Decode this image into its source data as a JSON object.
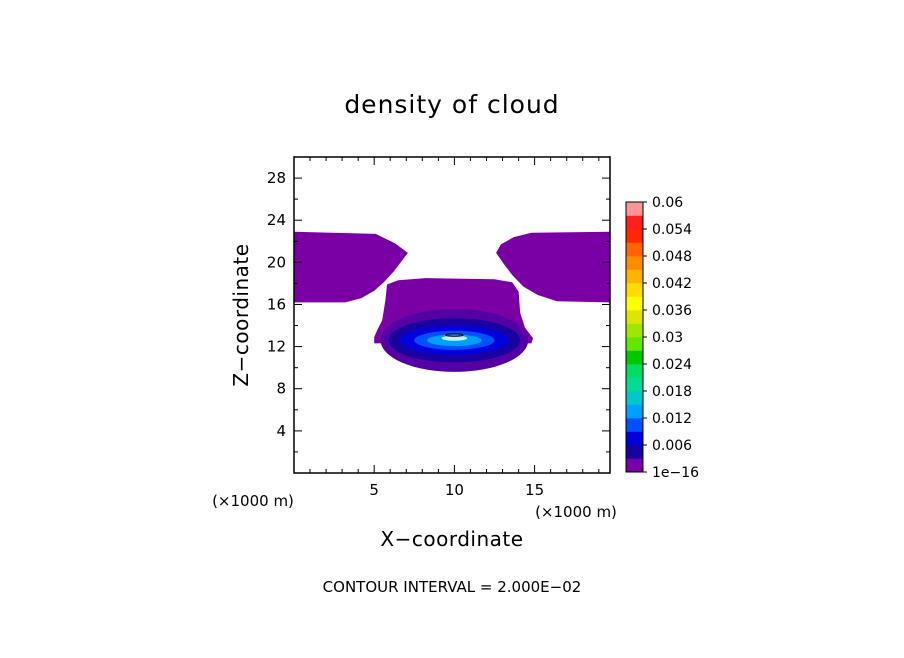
{
  "chart_data": {
    "type": "heatmap",
    "title": "density of cloud",
    "xlabel": "X−coordinate",
    "ylabel": "Z−coordinate",
    "x_unit_left": "(×1000 m)",
    "x_unit_right": "(×1000 m)",
    "xlim": [
      0,
      19.7
    ],
    "ylim": [
      0,
      30
    ],
    "x_ticks": [
      5,
      10,
      15
    ],
    "y_ticks": [
      4,
      8,
      12,
      16,
      20,
      24,
      28
    ],
    "x_minor_step": 1,
    "y_minor_step": 2,
    "footer": "CONTOUR INTERVAL = 2.000E−02",
    "colorbar": {
      "labels": [
        "0.06",
        "0.054",
        "0.048",
        "0.042",
        "0.036",
        "0.03",
        "0.024",
        "0.018",
        "0.012",
        "0.006",
        "1e−16"
      ],
      "levels": [
        1e-16,
        0.003,
        0.006,
        0.009,
        0.012,
        0.015,
        0.018,
        0.021,
        0.024,
        0.027,
        0.03,
        0.033,
        0.036,
        0.039,
        0.042,
        0.045,
        0.048,
        0.051,
        0.054,
        0.057,
        0.06
      ],
      "colors": [
        "#7a00a6",
        "#1900a0",
        "#0000dc",
        "#0050ff",
        "#00a0ff",
        "#00c8c8",
        "#00dc96",
        "#00dc64",
        "#00c800",
        "#64e600",
        "#a0e600",
        "#dce600",
        "#ffff00",
        "#ffdc00",
        "#ffb400",
        "#ff8c00",
        "#ff6400",
        "#ff2800",
        "#ff1e1e",
        "#ff9696"
      ]
    },
    "regions": [
      {
        "name": "upper-left-cloud",
        "color": "#7a00a6",
        "polygon": [
          [
            0,
            22.9
          ],
          [
            5.1,
            22.7
          ],
          [
            6.3,
            21.8
          ],
          [
            7.1,
            20.9
          ],
          [
            6.7,
            20.1
          ],
          [
            6.2,
            19.1
          ],
          [
            5.6,
            18.1
          ],
          [
            5,
            17.3
          ],
          [
            4.2,
            16.6
          ],
          [
            3.2,
            16.2
          ],
          [
            0,
            16.2
          ]
        ]
      },
      {
        "name": "upper-right-cloud",
        "color": "#7a00a6",
        "polygon": [
          [
            19.7,
            22.9
          ],
          [
            14.8,
            22.8
          ],
          [
            13.7,
            22.4
          ],
          [
            12.9,
            21.7
          ],
          [
            12.6,
            20.9
          ],
          [
            13.1,
            19.8
          ],
          [
            13.6,
            18.8
          ],
          [
            14.3,
            17.7
          ],
          [
            15.2,
            16.9
          ],
          [
            16.4,
            16.3
          ],
          [
            19.7,
            16.2
          ]
        ]
      },
      {
        "name": "central-cloud-outer",
        "color": "#7a00a6",
        "polygon": [
          [
            5,
            12.3
          ],
          [
            14.8,
            12.3
          ],
          [
            14.9,
            12.8
          ],
          [
            14.4,
            13.8
          ],
          [
            14.1,
            15.2
          ],
          [
            14.0,
            17.2
          ],
          [
            13.6,
            18.1
          ],
          [
            12.5,
            18.4
          ],
          [
            8.2,
            18.5
          ],
          [
            6.5,
            18.3
          ],
          [
            5.8,
            17.9
          ],
          [
            5.7,
            16.4
          ],
          [
            5.5,
            14.5
          ],
          [
            5.2,
            13.6
          ],
          [
            5.0,
            12.9
          ]
        ]
      },
      {
        "name": "central-cloud-level-1",
        "color": "#5400a4",
        "ellipse": {
          "cx": 10,
          "cy": 12.6,
          "rx": 4.6,
          "ry": 3.0
        }
      },
      {
        "name": "central-cloud-level-2",
        "color": "#1900a0",
        "ellipse": {
          "cx": 10,
          "cy": 12.6,
          "rx": 4.1,
          "ry": 2.1
        }
      },
      {
        "name": "central-cloud-level-3",
        "color": "#0000dc",
        "ellipse": {
          "cx": 10,
          "cy": 12.6,
          "rx": 3.4,
          "ry": 1.4
        }
      },
      {
        "name": "central-cloud-level-4",
        "color": "#0050ff",
        "ellipse": {
          "cx": 10,
          "cy": 12.6,
          "rx": 2.5,
          "ry": 0.9
        }
      },
      {
        "name": "central-cloud-level-5",
        "color": "#00a0ff",
        "ellipse": {
          "cx": 10,
          "cy": 12.6,
          "rx": 1.7,
          "ry": 0.55
        }
      },
      {
        "name": "central-cloud-level-6",
        "color": "#c8f0ff",
        "ellipse": {
          "cx": 10,
          "cy": 12.8,
          "rx": 0.8,
          "ry": 0.25
        }
      }
    ],
    "contour_line": {
      "cx": 10,
      "cy": 13.1,
      "rx": 0.55,
      "ry": 0.12
    }
  }
}
